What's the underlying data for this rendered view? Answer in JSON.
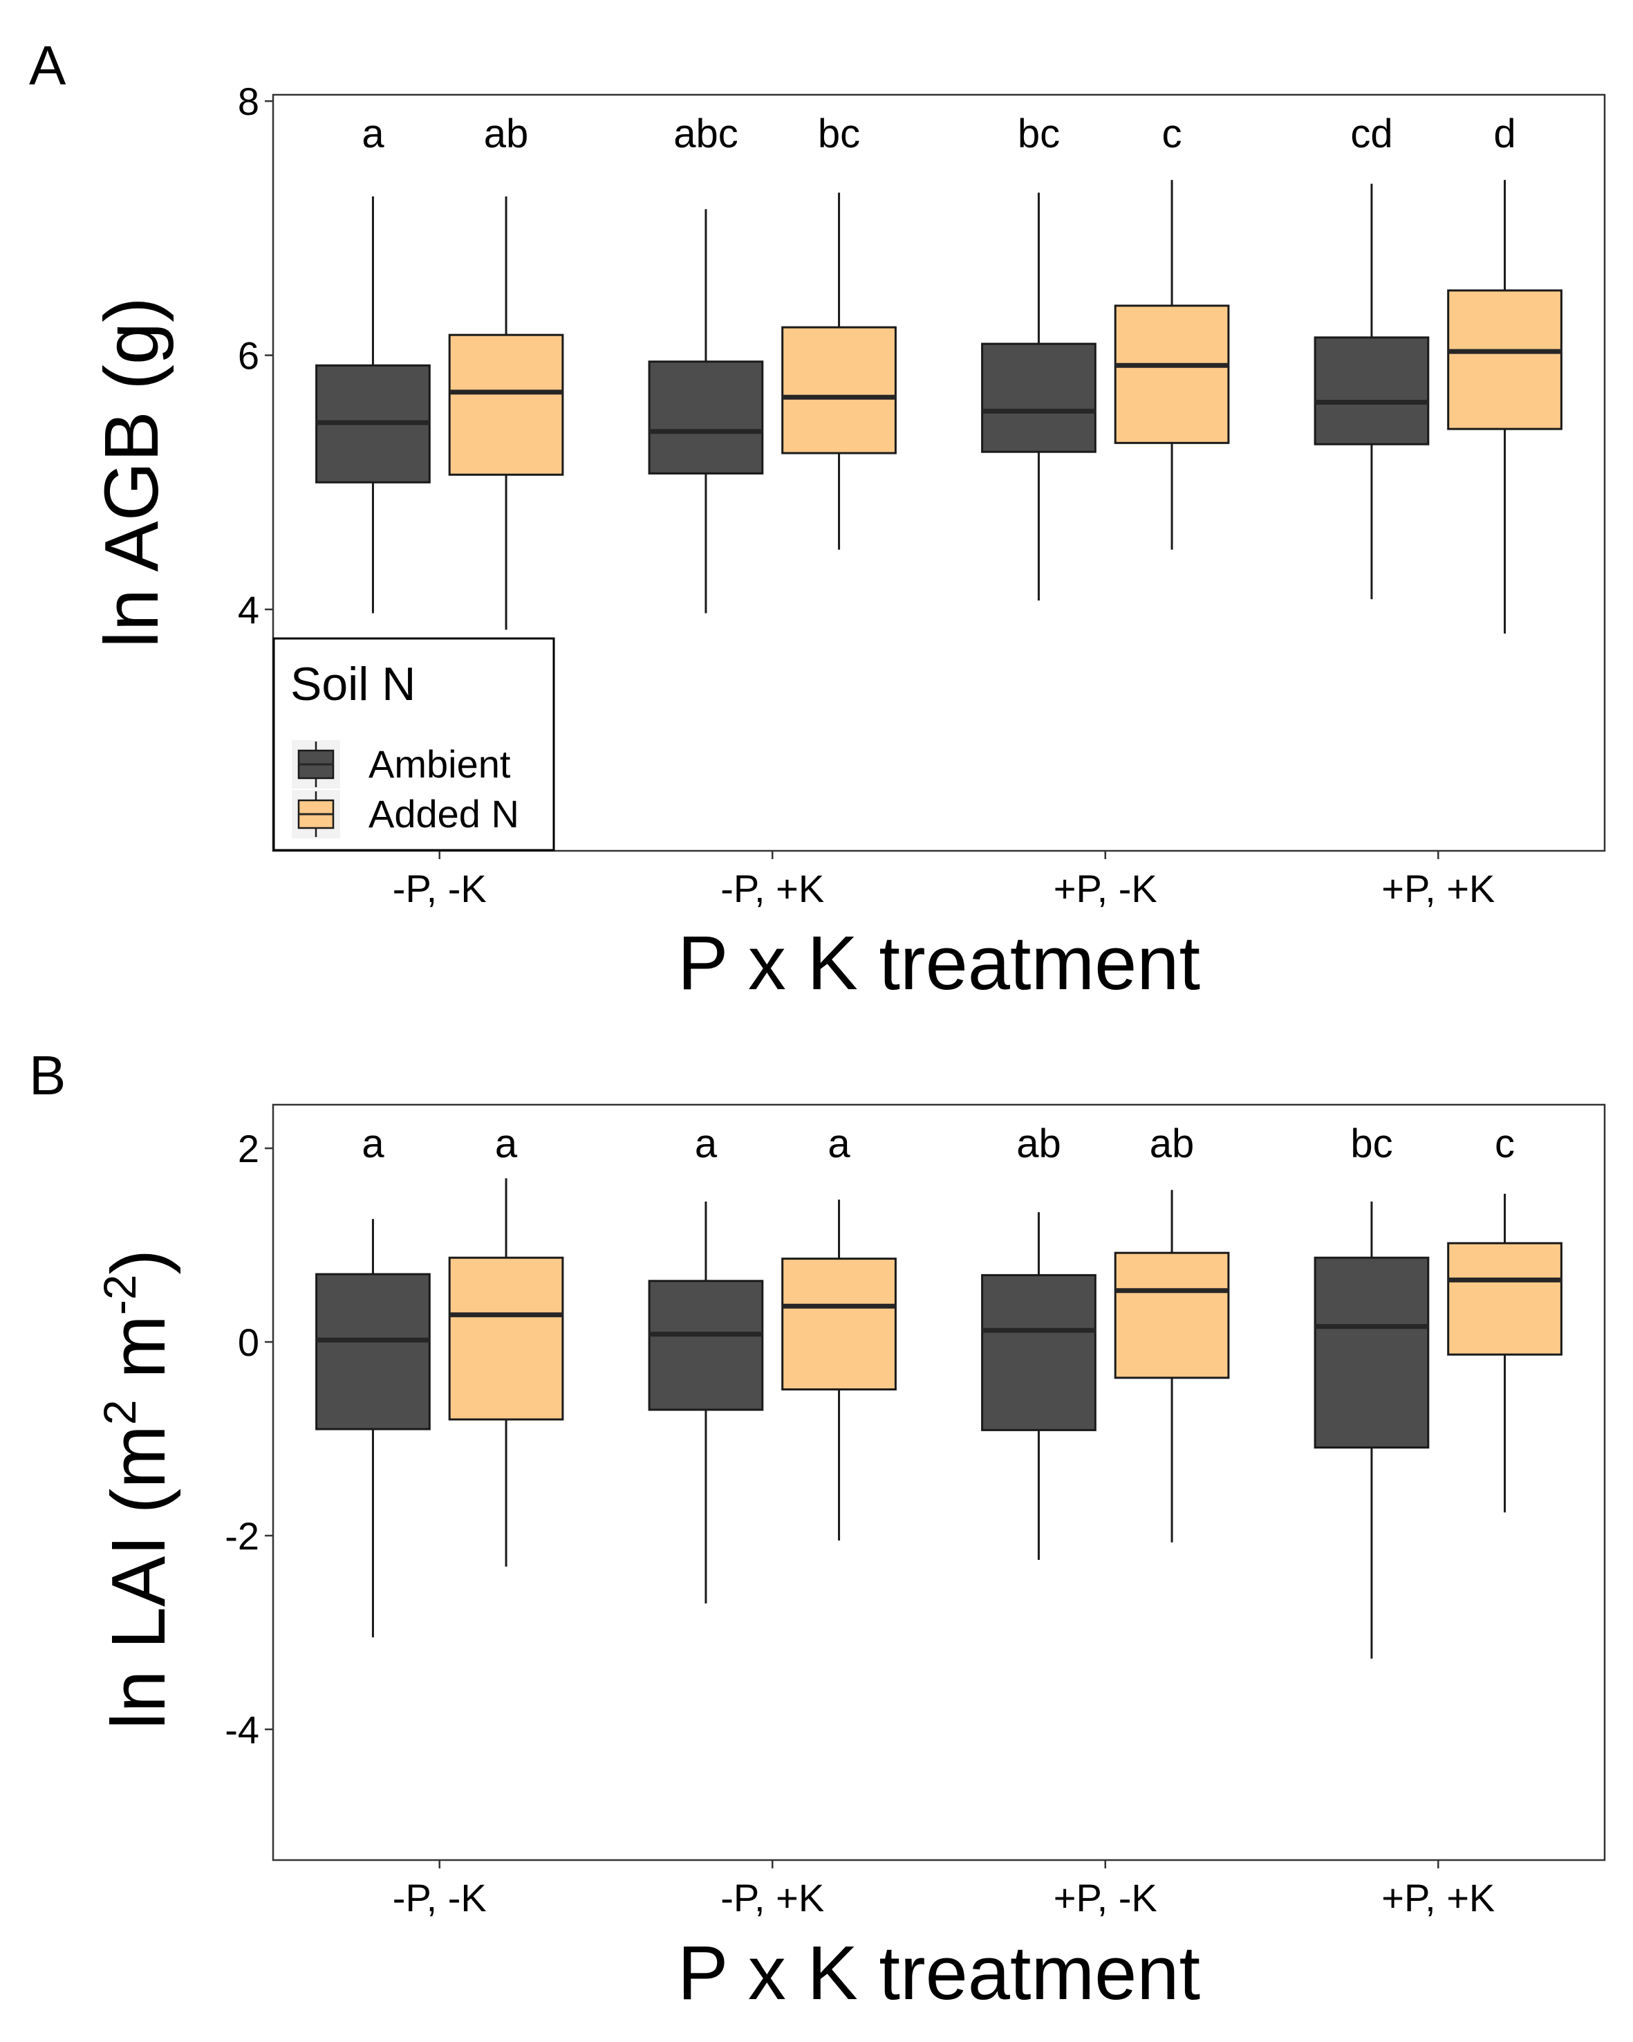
{
  "colors": {
    "ambient": "#4d4d4d",
    "added_n": "#fdca8a",
    "outline": "#1a1a1a",
    "median": "#262626"
  },
  "legend": {
    "title": "Soil N",
    "items": [
      "Ambient",
      "Added N"
    ],
    "placement": "bottom-left inside panel A"
  },
  "chart_data": [
    {
      "type": "box",
      "panel_label": "A",
      "xlabel": "P x K treatment",
      "ylabel": "ln AGB (g)",
      "categories": [
        "-P, -K",
        "-P, +K",
        "+P, -K",
        "+P, +K"
      ],
      "ylim": [
        2.1,
        8.05
      ],
      "yticks": [
        4,
        6,
        8
      ],
      "grid": false,
      "series": [
        {
          "name": "Ambient",
          "color": "#4d4d4d",
          "boxes": [
            {
              "min": 3.97,
              "q1": 5.0,
              "median": 5.47,
              "q3": 5.92,
              "max": 7.25,
              "letter": "a"
            },
            {
              "min": 3.97,
              "q1": 5.07,
              "median": 5.4,
              "q3": 5.95,
              "max": 7.15,
              "letter": "abc"
            },
            {
              "min": 4.07,
              "q1": 5.24,
              "median": 5.56,
              "q3": 6.09,
              "max": 7.28,
              "letter": "bc"
            },
            {
              "min": 4.08,
              "q1": 5.3,
              "median": 5.63,
              "q3": 6.14,
              "max": 7.35,
              "letter": "cd"
            }
          ]
        },
        {
          "name": "Added N",
          "color": "#fdca8a",
          "boxes": [
            {
              "min": 3.84,
              "q1": 5.06,
              "median": 5.71,
              "q3": 6.16,
              "max": 7.25,
              "letter": "ab"
            },
            {
              "min": 4.47,
              "q1": 5.23,
              "median": 5.67,
              "q3": 6.22,
              "max": 7.28,
              "letter": "bc"
            },
            {
              "min": 4.47,
              "q1": 5.31,
              "median": 5.92,
              "q3": 6.39,
              "max": 7.38,
              "letter": "c"
            },
            {
              "min": 3.81,
              "q1": 5.42,
              "median": 6.03,
              "q3": 6.51,
              "max": 7.38,
              "letter": "d"
            }
          ]
        }
      ]
    },
    {
      "type": "box",
      "panel_label": "B",
      "xlabel": "P x K treatment",
      "ylabel_main": "ln LAI (m",
      "ylabel_sup1": "2",
      "ylabel_mid": " m",
      "ylabel_sup2": "-2",
      "ylabel_end": ")",
      "categories": [
        "-P, -K",
        "-P, +K",
        "+P, -K",
        "+P, +K"
      ],
      "ylim": [
        -5.35,
        2.45
      ],
      "yticks": [
        -4,
        -2,
        0,
        2
      ],
      "grid": false,
      "series": [
        {
          "name": "Ambient",
          "color": "#4d4d4d",
          "boxes": [
            {
              "min": -3.05,
              "q1": -0.9,
              "median": 0.02,
              "q3": 0.7,
              "max": 1.27,
              "letter": "a"
            },
            {
              "min": -2.7,
              "q1": -0.7,
              "median": 0.08,
              "q3": 0.63,
              "max": 1.45,
              "letter": "a"
            },
            {
              "min": -2.25,
              "q1": -0.91,
              "median": 0.12,
              "q3": 0.69,
              "max": 1.34,
              "letter": "ab"
            },
            {
              "min": -3.27,
              "q1": -1.09,
              "median": 0.16,
              "q3": 0.87,
              "max": 1.45,
              "letter": "bc"
            }
          ]
        },
        {
          "name": "Added N",
          "color": "#fdca8a",
          "boxes": [
            {
              "min": -2.32,
              "q1": -0.8,
              "median": 0.28,
              "q3": 0.87,
              "max": 1.69,
              "letter": "a"
            },
            {
              "min": -2.05,
              "q1": -0.49,
              "median": 0.37,
              "q3": 0.86,
              "max": 1.47,
              "letter": "a"
            },
            {
              "min": -2.07,
              "q1": -0.37,
              "median": 0.53,
              "q3": 0.92,
              "max": 1.57,
              "letter": "ab"
            },
            {
              "min": -1.76,
              "q1": -0.13,
              "median": 0.64,
              "q3": 1.02,
              "max": 1.53,
              "letter": "c"
            }
          ]
        }
      ]
    }
  ]
}
